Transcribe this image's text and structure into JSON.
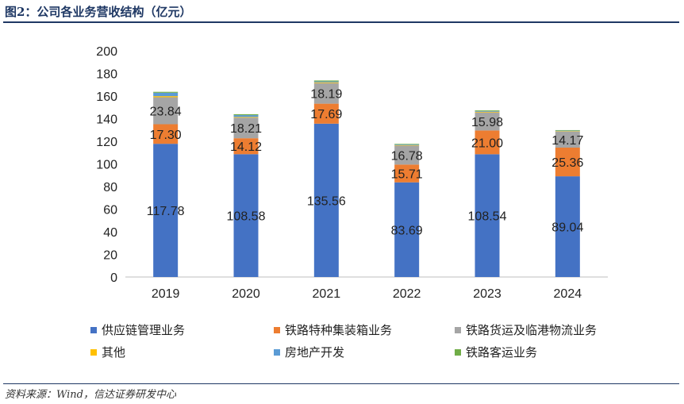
{
  "title": "图2：公司各业务营收结构（亿元）",
  "source": "资料来源：Wind，信达证券研发中心",
  "chart_data": {
    "type": "bar",
    "stacked": true,
    "categories": [
      "2019",
      "2020",
      "2021",
      "2022",
      "2023",
      "2024"
    ],
    "ylim": [
      0,
      200
    ],
    "yticks": [
      0,
      20,
      40,
      60,
      80,
      100,
      120,
      140,
      160,
      180,
      200
    ],
    "grid": false,
    "legend_position": "bottom",
    "series": [
      {
        "name": "供应链管理业务",
        "color": "#4472c4",
        "values": [
          117.78,
          108.58,
          135.56,
          83.69,
          108.54,
          89.04
        ],
        "labels": [
          "117.78",
          "108.58",
          "135.56",
          "83.69",
          "108.54",
          "89.04"
        ]
      },
      {
        "name": "铁路特种集装箱业务",
        "color": "#ed7d31",
        "values": [
          17.3,
          14.12,
          17.69,
          15.71,
          21.0,
          25.36
        ],
        "labels": [
          "17.30",
          "14.12",
          "17.69",
          "15.71",
          "21.00",
          "25.36"
        ]
      },
      {
        "name": "铁路货运及临港物流业务",
        "color": "#a5a5a5",
        "values": [
          23.84,
          18.21,
          18.19,
          16.78,
          15.98,
          14.17
        ],
        "labels": [
          "23.84",
          "18.21",
          "18.19",
          "16.78",
          "15.98",
          "14.17"
        ]
      },
      {
        "name": "其他",
        "color": "#ffc000",
        "values": [
          1.0,
          0.6,
          0.7,
          0.4,
          0.6,
          0.4
        ]
      },
      {
        "name": "房地产开发",
        "color": "#5b9bd5",
        "values": [
          3.0,
          1.6,
          0.8,
          0.5,
          0.6,
          0.4
        ]
      },
      {
        "name": "铁路客运业务",
        "color": "#70ad47",
        "values": [
          0.8,
          0.8,
          0.8,
          0.6,
          0.6,
          0.5
        ]
      }
    ]
  }
}
